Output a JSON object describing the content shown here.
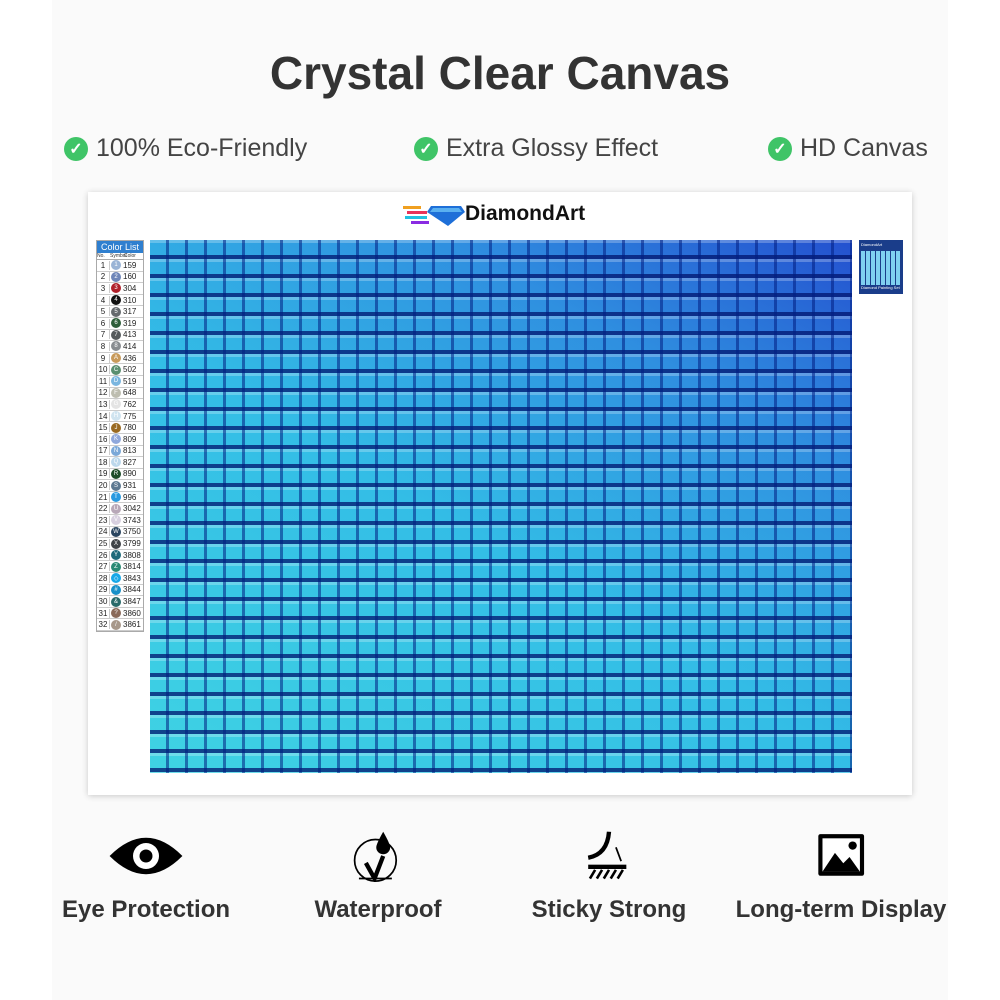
{
  "title": "Crystal Clear Canvas",
  "features": [
    "100% Eco-Friendly",
    "Extra Glossy Effect",
    "HD Canvas"
  ],
  "brand": "DiamondArt",
  "color_list": {
    "title": "Color List",
    "headers": [
      "No.",
      "Symbol",
      "Color"
    ],
    "rows": [
      [
        "1",
        "1",
        "159",
        "#9ab4d6"
      ],
      [
        "2",
        "2",
        "160",
        "#6f86b8"
      ],
      [
        "3",
        "3",
        "304",
        "#b0202a"
      ],
      [
        "4",
        "4",
        "310",
        "#111111"
      ],
      [
        "5",
        "5",
        "317",
        "#666a6e"
      ],
      [
        "6",
        "6",
        "319",
        "#2e5e3a"
      ],
      [
        "7",
        "7",
        "413",
        "#555a5c"
      ],
      [
        "8",
        "8",
        "414",
        "#888c90"
      ],
      [
        "9",
        "A",
        "436",
        "#c89a5a"
      ],
      [
        "10",
        "C",
        "502",
        "#5a8f70"
      ],
      [
        "11",
        "D",
        "519",
        "#7ab6e0"
      ],
      [
        "12",
        "F",
        "648",
        "#bdbdb0"
      ],
      [
        "13",
        "G",
        "762",
        "#e4e4e4"
      ],
      [
        "14",
        "H",
        "775",
        "#d0e4f0"
      ],
      [
        "15",
        "J",
        "780",
        "#9a6a22"
      ],
      [
        "16",
        "K",
        "809",
        "#8fa8dc"
      ],
      [
        "17",
        "N",
        "813",
        "#7aa8d8"
      ],
      [
        "18",
        "Q",
        "827",
        "#bcd8ec"
      ],
      [
        "19",
        "R",
        "890",
        "#1e4d2a"
      ],
      [
        "20",
        "S",
        "931",
        "#5c7890"
      ],
      [
        "21",
        "T",
        "996",
        "#2a9ae0"
      ],
      [
        "22",
        "U",
        "3042",
        "#b8a8b8"
      ],
      [
        "23",
        "V",
        "3743",
        "#d8d0e0"
      ],
      [
        "24",
        "W",
        "3750",
        "#2a4560"
      ],
      [
        "25",
        "X",
        "3799",
        "#404448"
      ],
      [
        "26",
        "Y",
        "3808",
        "#1e6a7a"
      ],
      [
        "27",
        "Z",
        "3814",
        "#2a8a74"
      ],
      [
        "28",
        "◇",
        "3843",
        "#18a8e8"
      ],
      [
        "29",
        "#",
        "3844",
        "#1890c8"
      ],
      [
        "30",
        "&",
        "3847",
        "#2a6a6a"
      ],
      [
        "31",
        "?",
        "3860",
        "#8a6a5a"
      ],
      [
        "32",
        "/",
        "3861",
        "#a8988a"
      ]
    ]
  },
  "thumbnail": {
    "brand": "DiamondArt",
    "caption": "Diamond Painting Set"
  },
  "bottom_features": [
    {
      "label": "Eye Protection",
      "icon": "eye-icon"
    },
    {
      "label": "Waterproof",
      "icon": "water-drop-check-icon"
    },
    {
      "label": "Sticky Strong",
      "icon": "peel-adhesive-icon"
    },
    {
      "label": "Long-term Display",
      "icon": "image-icon"
    }
  ],
  "colors": {
    "check": "#3fc467",
    "title": "#333333"
  }
}
